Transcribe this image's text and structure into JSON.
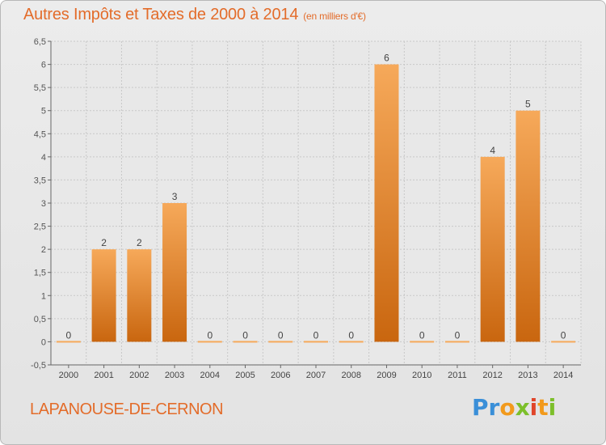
{
  "title": "Autres Impôts et Taxes de 2000 à 2014",
  "unit": "(en milliers d'€)",
  "commune": "LAPANOUSE-DE-CERNON",
  "logo": {
    "text": "Proxiti"
  },
  "colors": {
    "accent": "#e36c2a",
    "bar_top": "#f6a95a",
    "bar_bottom": "#c9660f",
    "grid": "#c8c8c8",
    "background": "#e6e6e6"
  },
  "chart_data": {
    "type": "bar",
    "categories": [
      "2000",
      "2001",
      "2002",
      "2003",
      "2004",
      "2005",
      "2006",
      "2007",
      "2008",
      "2009",
      "2010",
      "2011",
      "2012",
      "2013",
      "2014"
    ],
    "values": [
      0,
      2,
      2,
      3,
      0,
      0,
      0,
      0,
      0,
      6,
      0,
      0,
      4,
      5,
      0
    ],
    "data_labels": [
      "0",
      "2",
      "2",
      "3",
      "0",
      "0",
      "0",
      "0",
      "0",
      "6",
      "0",
      "0",
      "4",
      "5",
      "0"
    ],
    "y_ticks": [
      "-0,5",
      "0",
      "0,5",
      "1",
      "1,5",
      "2",
      "2,5",
      "3",
      "3,5",
      "4",
      "4,5",
      "5",
      "5,5",
      "6",
      "6,5"
    ],
    "y_tick_values": [
      -0.5,
      0,
      0.5,
      1,
      1.5,
      2,
      2.5,
      3,
      3.5,
      4,
      4.5,
      5,
      5.5,
      6,
      6.5
    ],
    "ylim": [
      -0.5,
      6.5
    ],
    "grid": true,
    "xlabel": "",
    "ylabel": ""
  }
}
